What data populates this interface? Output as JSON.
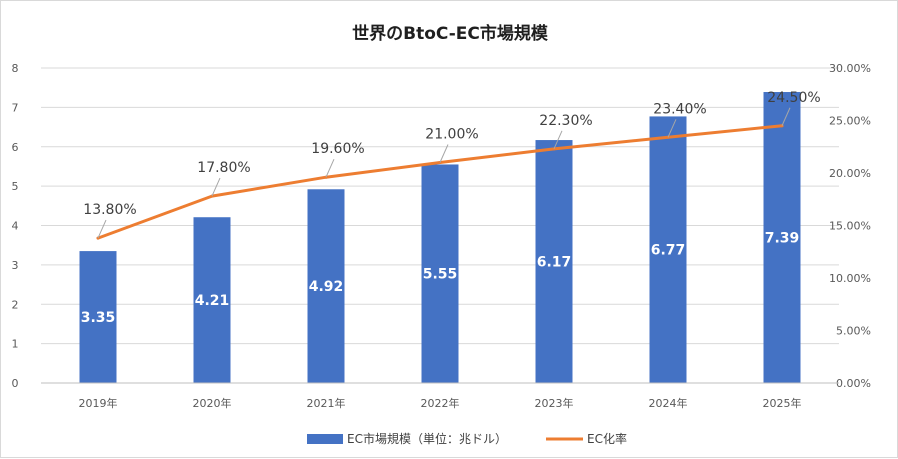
{
  "chart_data": {
    "type": "bar",
    "title": "世界のBtoC-EC市場規模",
    "categories": [
      "2019年",
      "2020年",
      "2021年",
      "2022年",
      "2023年",
      "2024年",
      "2025年"
    ],
    "series": [
      {
        "name": "EC市場規模（単位：兆ドル）",
        "type": "bar",
        "axis": "left",
        "color": "#4472C4",
        "values": [
          3.35,
          4.21,
          4.92,
          5.55,
          6.17,
          6.77,
          7.39
        ],
        "labels": [
          "3.35",
          "4.21",
          "4.92",
          "5.55",
          "6.17",
          "6.77",
          "7.39"
        ]
      },
      {
        "name": "EC化率",
        "type": "line",
        "axis": "right",
        "color": "#ED7D31",
        "values": [
          13.8,
          17.8,
          19.6,
          21.0,
          22.3,
          23.4,
          24.5
        ],
        "labels": [
          "13.80%",
          "17.80%",
          "19.60%",
          "21.00%",
          "22.30%",
          "23.40%",
          "24.50%"
        ]
      }
    ],
    "y_left": {
      "min": 0,
      "max": 8,
      "ticks": [
        "0",
        "1",
        "2",
        "3",
        "4",
        "5",
        "6",
        "7",
        "8"
      ]
    },
    "y_right": {
      "min": 0,
      "max": 30,
      "ticks": [
        "0.00%",
        "5.00%",
        "10.00%",
        "15.00%",
        "20.00%",
        "25.00%",
        "30.00%"
      ]
    },
    "grid": true,
    "legend_position": "bottom"
  }
}
